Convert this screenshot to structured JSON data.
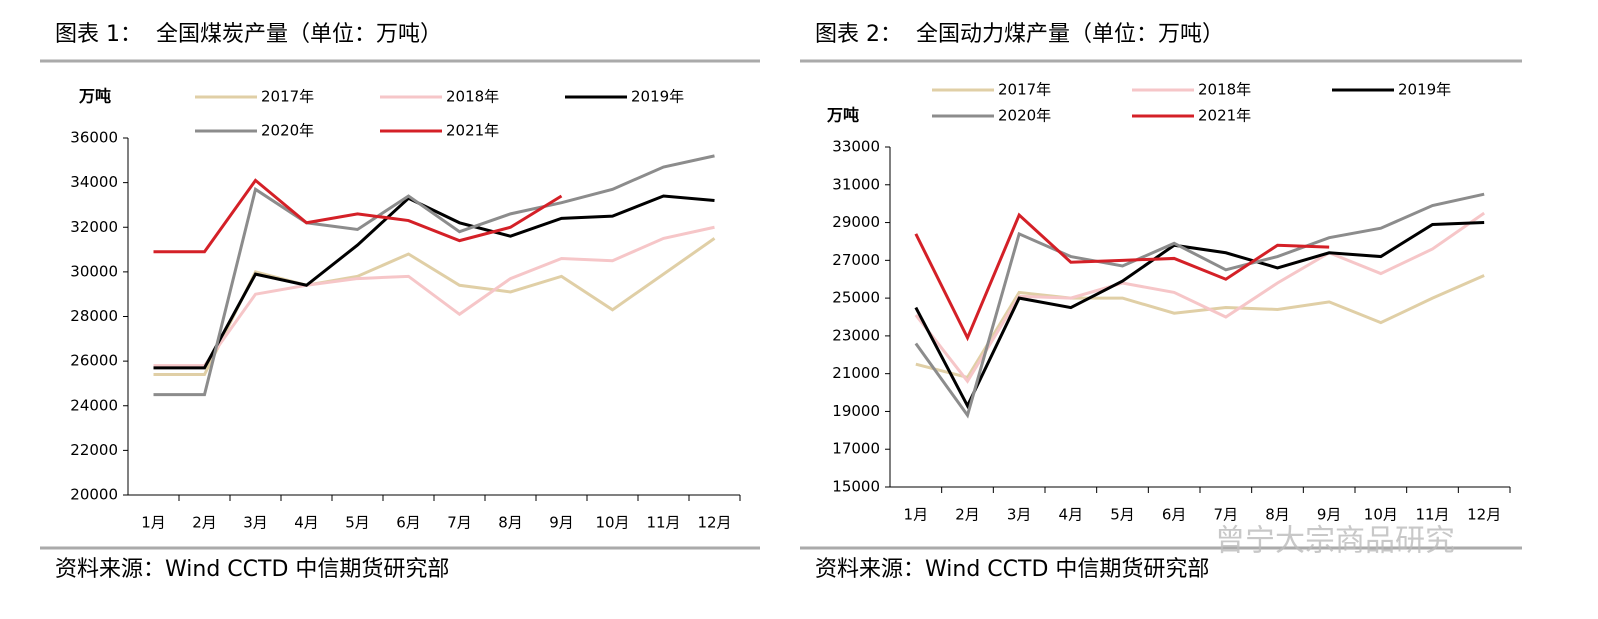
{
  "chart_data": [
    {
      "type": "line",
      "title": "图表 1：  全国煤炭产量（单位：万吨）",
      "y_label": "万吨",
      "source": "资料来源：Wind CCTD 中信期货研究部",
      "categories": [
        "1月",
        "2月",
        "3月",
        "4月",
        "5月",
        "6月",
        "7月",
        "8月",
        "9月",
        "10月",
        "11月",
        "12月"
      ],
      "ylim": [
        20000,
        36000
      ],
      "yticks": [
        20000,
        22000,
        24000,
        26000,
        28000,
        30000,
        32000,
        34000,
        36000
      ],
      "series": [
        {
          "name": "2017年",
          "color": "#e0cfa6",
          "values": [
            25400,
            25400,
            30000,
            29400,
            29800,
            30800,
            29400,
            29100,
            29800,
            28300,
            29900,
            31500
          ]
        },
        {
          "name": "2018年",
          "color": "#f6c6c8",
          "values": [
            25800,
            25800,
            29000,
            29400,
            29700,
            29800,
            28100,
            29700,
            30600,
            30500,
            31500,
            32000
          ]
        },
        {
          "name": "2019年",
          "color": "#000000",
          "values": [
            25700,
            25700,
            29900,
            29400,
            31200,
            33300,
            32200,
            31600,
            32400,
            32500,
            33400,
            33200
          ]
        },
        {
          "name": "2020年",
          "color": "#8c8c8c",
          "values": [
            24500,
            24500,
            33700,
            32200,
            31900,
            33400,
            31800,
            32600,
            33100,
            33700,
            34700,
            35200
          ]
        },
        {
          "name": "2021年",
          "color": "#d42027",
          "values": [
            30900,
            30900,
            34100,
            32200,
            32600,
            32300,
            31400,
            32000,
            33400,
            null,
            null,
            null
          ]
        }
      ]
    },
    {
      "type": "line",
      "title": "图表 2：  全国动力煤产量（单位：万吨）",
      "y_label": "万吨",
      "source": "资料来源：Wind CCTD 中信期货研究部",
      "categories": [
        "1月",
        "2月",
        "3月",
        "4月",
        "5月",
        "6月",
        "7月",
        "8月",
        "9月",
        "10月",
        "11月",
        "12月"
      ],
      "ylim": [
        15000,
        33000
      ],
      "yticks": [
        15000,
        17000,
        19000,
        21000,
        23000,
        25000,
        27000,
        29000,
        31000,
        33000
      ],
      "series": [
        {
          "name": "2017年",
          "color": "#e0cfa6",
          "values": [
            21500,
            20800,
            25300,
            25000,
            25000,
            24200,
            24500,
            24400,
            24800,
            23700,
            25000,
            26200
          ]
        },
        {
          "name": "2018年",
          "color": "#f6c6c8",
          "values": [
            24100,
            20600,
            25100,
            25000,
            25800,
            25300,
            24000,
            25800,
            27400,
            26300,
            27600,
            29500
          ]
        },
        {
          "name": "2019年",
          "color": "#000000",
          "values": [
            24500,
            19300,
            25000,
            24500,
            25900,
            27800,
            27400,
            26600,
            27400,
            27200,
            28900,
            29000
          ]
        },
        {
          "name": "2020年",
          "color": "#8c8c8c",
          "values": [
            22600,
            18800,
            28400,
            27200,
            26700,
            27900,
            26500,
            27200,
            28200,
            28700,
            29900,
            30500
          ]
        },
        {
          "name": "2021年",
          "color": "#d42027",
          "values": [
            28400,
            22900,
            29400,
            26900,
            27000,
            27100,
            26000,
            27800,
            27700,
            null,
            null,
            null
          ]
        }
      ]
    }
  ],
  "watermark": "曾宁大宗商品研究"
}
